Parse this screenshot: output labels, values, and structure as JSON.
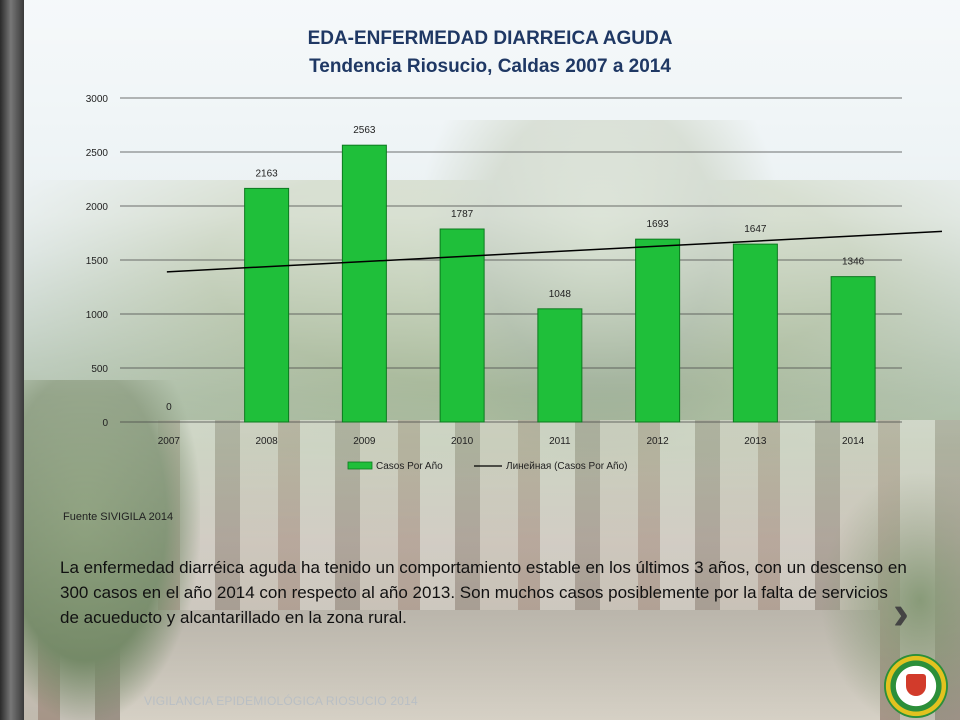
{
  "title_line1": "EDA-ENFERMEDAD DIARREICA AGUDA",
  "title_line2": "Tendencia Riosucio, Caldas 2007 a 2014",
  "source": "Fuente SIVIGILA 2014",
  "paragraph": "La enfermedad diarréica aguda ha tenido un comportamiento estable en los últimos 3 años, con un descenso en 300 casos en el año 2014  con respecto al año 2013. Son muchos casos posiblemente por la falta de servicios de acueducto y alcantarillado en la zona rural.",
  "footer": "VIGILANCIA EPIDEMIOLÓGICA RIOSUCIO 2014",
  "icons": {
    "next": "chevron-right-icon",
    "seal": "alcaldia-seal-icon"
  },
  "colors": {
    "bar": "#1fbf3a",
    "bar_stroke": "#0c7a1f",
    "title": "#1f3864",
    "trend": "#000000"
  },
  "chart_data": {
    "type": "bar",
    "categories": [
      "2007",
      "2008",
      "2009",
      "2010",
      "2011",
      "2012",
      "2013",
      "2014"
    ],
    "series": [
      {
        "name": "Casos Por Año",
        "values": [
          0,
          2163,
          2563,
          1787,
          1048,
          1693,
          1647,
          1346
        ]
      }
    ],
    "trendline": {
      "name": "Линейная (Casos Por Año)",
      "type": "linear",
      "start": 1390,
      "end": 1765
    },
    "ylim": [
      0,
      3000
    ],
    "yticks": [
      0,
      500,
      1000,
      1500,
      2000,
      2500,
      3000
    ],
    "title": "EDA-ENFERMEDAD DIARREICA AGUDA",
    "subtitle": "Tendencia Riosucio, Caldas 2007 a 2014",
    "xlabel": "",
    "ylabel": "",
    "grid": true,
    "legend": "bottom"
  }
}
